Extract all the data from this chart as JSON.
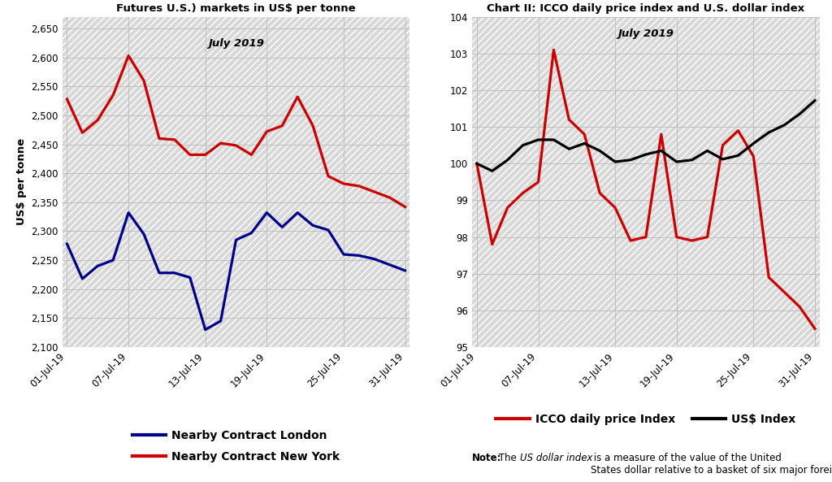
{
  "chart1": {
    "title_main": "Chart I: Prices of the nearby futures contract on the\nLondon (ICE Futures Europe) and New York (ICE\nFutures U.S.) markets in US$ per tonne",
    "title_italic": "July 2019",
    "ylabel": "US$ per tonne",
    "xtick_labels": [
      "01-Jul-19",
      "07-Jul-19",
      "13-Jul-19",
      "19-Jul-19",
      "25-Jul-19",
      "31-Jul-19"
    ],
    "ylim": [
      2100,
      2670
    ],
    "yticks": [
      2100,
      2150,
      2200,
      2250,
      2300,
      2350,
      2400,
      2450,
      2500,
      2550,
      2600,
      2650
    ],
    "london_y": [
      2278,
      2218,
      2240,
      2250,
      2332,
      2295,
      2228,
      2228,
      2220,
      2130,
      2145,
      2285,
      2297,
      2332,
      2307,
      2332,
      2310,
      2302,
      2260,
      2258,
      2252,
      2242,
      2232
    ],
    "newyork_y": [
      2528,
      2470,
      2492,
      2535,
      2603,
      2560,
      2460,
      2458,
      2432,
      2432,
      2452,
      2448,
      2432,
      2472,
      2482,
      2532,
      2482,
      2395,
      2382,
      2378,
      2368,
      2358,
      2342
    ],
    "london_color": "#00008B",
    "newyork_color": "#CC0000",
    "london_label": "Nearby Contract London",
    "newyork_label": "Nearby Contract New York",
    "linewidth": 2.3
  },
  "chart2": {
    "title_main": "Chart II: ICCO daily price index and U.S. dollar index",
    "title_italic": "July 2019",
    "xtick_labels": [
      "01-Jul-19",
      "07-Jul-19",
      "13-Jul-19",
      "19-Jul-19",
      "25-Jul-19",
      "31-Jul-19"
    ],
    "ylim": [
      95,
      104
    ],
    "yticks": [
      95,
      96,
      97,
      98,
      99,
      100,
      101,
      102,
      103,
      104
    ],
    "icco_y": [
      100.0,
      97.8,
      98.8,
      99.2,
      99.5,
      103.1,
      101.2,
      100.8,
      99.2,
      98.8,
      97.9,
      98.0,
      100.8,
      98.0,
      97.9,
      98.0,
      100.5,
      100.9,
      100.2,
      96.9,
      96.5,
      96.1,
      95.5
    ],
    "usd_y": [
      100.0,
      99.8,
      100.1,
      100.5,
      100.65,
      100.65,
      100.4,
      100.55,
      100.35,
      100.05,
      100.1,
      100.25,
      100.35,
      100.05,
      100.1,
      100.35,
      100.12,
      100.22,
      100.55,
      100.85,
      101.05,
      101.35,
      101.72
    ],
    "icco_color": "#CC0000",
    "usd_color": "#000000",
    "icco_label": "ICCO daily price Index",
    "usd_label": "US$ Index",
    "linewidth": 2.3
  },
  "bg_color": "#D8D8D8",
  "hatch_color": "white",
  "grid_color": "#C0C0C0",
  "note_bold": "Note:",
  "note_text1": " The ",
  "note_italic": "US dollar index",
  "note_text2": " is a measure of the value of the United\nStates dollar relative to a basket of six major foreign currencies."
}
